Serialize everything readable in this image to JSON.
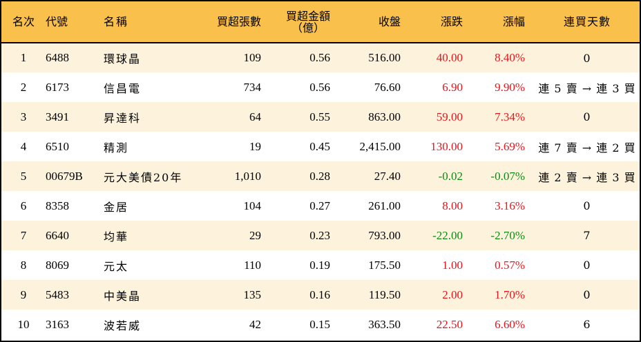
{
  "table": {
    "headers": {
      "rank": "名次",
      "code": "代號",
      "name": "名稱",
      "net_buy_lots": "買超張數",
      "net_buy_amount_line1": "買超金額",
      "net_buy_amount_line2": "（億）",
      "close": "收盤",
      "change": "漲跌",
      "change_pct": "漲幅",
      "consecutive_buy_days": "連買天數"
    },
    "colors": {
      "header_bg": "#f9c04c",
      "row_alt_bg": "#fdf3dc",
      "up": "#e8141c",
      "down": "#0d8a12"
    },
    "rows": [
      {
        "rank": "1",
        "code": "6488",
        "name": "環球晶",
        "lots": "109",
        "amount": "0.56",
        "close": "516.00",
        "change": "40.00",
        "pct": "8.40%",
        "dir": "up",
        "streak": "0"
      },
      {
        "rank": "2",
        "code": "6173",
        "name": "信昌電",
        "lots": "734",
        "amount": "0.56",
        "close": "76.60",
        "change": "6.90",
        "pct": "9.90%",
        "dir": "up",
        "streak": "連 5 賣 → 連 3 買"
      },
      {
        "rank": "3",
        "code": "3491",
        "name": "昇達科",
        "lots": "64",
        "amount": "0.55",
        "close": "863.00",
        "change": "59.00",
        "pct": "7.34%",
        "dir": "up",
        "streak": "0"
      },
      {
        "rank": "4",
        "code": "6510",
        "name": "精測",
        "lots": "19",
        "amount": "0.45",
        "close": "2,415.00",
        "change": "130.00",
        "pct": "5.69%",
        "dir": "up",
        "streak": "連 7 賣 → 連 2 買"
      },
      {
        "rank": "5",
        "code": "00679B",
        "name": "元大美債20年",
        "lots": "1,010",
        "amount": "0.28",
        "close": "27.40",
        "change": "-0.02",
        "pct": "-0.07%",
        "dir": "down",
        "streak": "連 2 賣 → 連 3 買"
      },
      {
        "rank": "6",
        "code": "8358",
        "name": "金居",
        "lots": "104",
        "amount": "0.27",
        "close": "261.00",
        "change": "8.00",
        "pct": "3.16%",
        "dir": "up",
        "streak": "0"
      },
      {
        "rank": "7",
        "code": "6640",
        "name": "均華",
        "lots": "29",
        "amount": "0.23",
        "close": "793.00",
        "change": "-22.00",
        "pct": "-2.70%",
        "dir": "down",
        "streak": "7"
      },
      {
        "rank": "8",
        "code": "8069",
        "name": "元太",
        "lots": "110",
        "amount": "0.19",
        "close": "175.50",
        "change": "1.00",
        "pct": "0.57%",
        "dir": "up",
        "streak": "0"
      },
      {
        "rank": "9",
        "code": "5483",
        "name": "中美晶",
        "lots": "135",
        "amount": "0.16",
        "close": "119.50",
        "change": "2.00",
        "pct": "1.70%",
        "dir": "up",
        "streak": "0"
      },
      {
        "rank": "10",
        "code": "3163",
        "name": "波若威",
        "lots": "42",
        "amount": "0.15",
        "close": "363.50",
        "change": "22.50",
        "pct": "6.60%",
        "dir": "up",
        "streak": "6"
      }
    ]
  }
}
